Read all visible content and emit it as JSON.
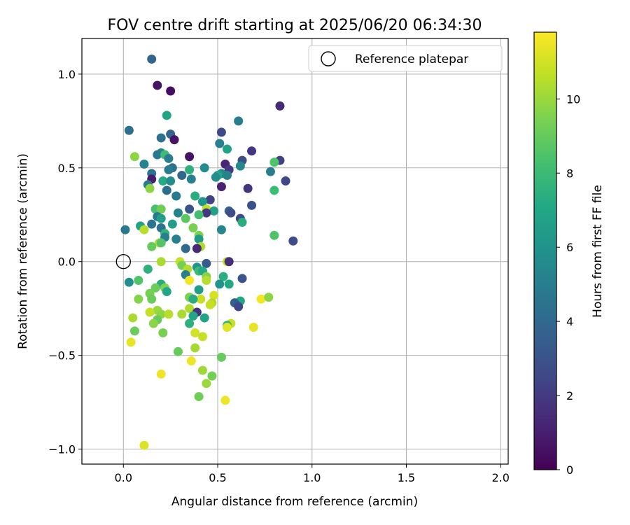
{
  "chart_data": {
    "type": "scatter",
    "title": "FOV centre drift starting at 2025/06/20 06:34:30",
    "xlabel": "Angular distance from reference (arcmin)",
    "ylabel": "Rotation from reference (arcmin)",
    "xlim": [
      -0.22,
      2.04
    ],
    "ylim": [
      -1.08,
      1.19
    ],
    "x_ticks": [
      0.0,
      0.5,
      1.0,
      1.5,
      2.0
    ],
    "x_tick_labels": [
      "0.0",
      "0.5",
      "1.0",
      "1.5",
      "2.0"
    ],
    "y_ticks": [
      -1.0,
      -0.5,
      0.0,
      0.5,
      1.0
    ],
    "y_tick_labels": [
      "−1.0",
      "−0.5",
      "0.0",
      "0.5",
      "1.0"
    ],
    "grid": true,
    "legend": {
      "placement": "top-right",
      "entries": [
        "Reference platepar"
      ]
    },
    "reference_point": {
      "x": 0.0,
      "y": 0.0,
      "label": "Reference platepar"
    },
    "colorbar": {
      "label": "Hours from first FF file",
      "colormap": "viridis",
      "range": [
        0,
        11.8
      ],
      "ticks": [
        0,
        2,
        4,
        6,
        8,
        10
      ],
      "tick_labels": [
        "0",
        "2",
        "4",
        "6",
        "8",
        "10"
      ]
    },
    "points": [
      {
        "x": 0.15,
        "y": 1.08,
        "h": 3.8
      },
      {
        "x": 0.18,
        "y": 0.94,
        "h": 0.6
      },
      {
        "x": 0.25,
        "y": 0.91,
        "h": 0.4
      },
      {
        "x": 0.83,
        "y": 0.83,
        "h": 1.4
      },
      {
        "x": 0.23,
        "y": 0.78,
        "h": 6.8
      },
      {
        "x": 0.61,
        "y": 0.75,
        "h": 5.0
      },
      {
        "x": 0.03,
        "y": 0.7,
        "h": 4.3
      },
      {
        "x": 0.52,
        "y": 0.69,
        "h": 2.6
      },
      {
        "x": 0.25,
        "y": 0.68,
        "h": 3.8
      },
      {
        "x": 0.2,
        "y": 0.66,
        "h": 4.4
      },
      {
        "x": 0.27,
        "y": 0.65,
        "h": 0.6
      },
      {
        "x": 0.51,
        "y": 0.63,
        "h": 5.1
      },
      {
        "x": 0.55,
        "y": 0.6,
        "h": 6.8
      },
      {
        "x": 0.68,
        "y": 0.59,
        "h": 1.8
      },
      {
        "x": 0.2,
        "y": 0.58,
        "h": 5.4
      },
      {
        "x": 0.18,
        "y": 0.57,
        "h": 4.8
      },
      {
        "x": 0.22,
        "y": 0.57,
        "h": 8.1
      },
      {
        "x": 0.06,
        "y": 0.56,
        "h": 9.8
      },
      {
        "x": 0.35,
        "y": 0.56,
        "h": 0.6
      },
      {
        "x": 0.24,
        "y": 0.55,
        "h": 5.0
      },
      {
        "x": 0.83,
        "y": 0.54,
        "h": 2.3
      },
      {
        "x": 0.63,
        "y": 0.54,
        "h": 2.8
      },
      {
        "x": 0.8,
        "y": 0.53,
        "h": 8.5
      },
      {
        "x": 0.11,
        "y": 0.52,
        "h": 5.3
      },
      {
        "x": 0.54,
        "y": 0.52,
        "h": 1.2
      },
      {
        "x": 0.62,
        "y": 0.51,
        "h": 5.5
      },
      {
        "x": 0.26,
        "y": 0.5,
        "h": 4.3
      },
      {
        "x": 0.43,
        "y": 0.5,
        "h": 5.7
      },
      {
        "x": 0.24,
        "y": 0.49,
        "h": 4.9
      },
      {
        "x": 0.35,
        "y": 0.49,
        "h": 7.5
      },
      {
        "x": 0.56,
        "y": 0.49,
        "h": 2.0
      },
      {
        "x": 0.78,
        "y": 0.48,
        "h": 5.0
      },
      {
        "x": 0.15,
        "y": 0.47,
        "h": 4.5
      },
      {
        "x": 0.52,
        "y": 0.47,
        "h": 5.5
      },
      {
        "x": 0.5,
        "y": 0.46,
        "h": 7.0
      },
      {
        "x": 0.31,
        "y": 0.46,
        "h": 4.0
      },
      {
        "x": 0.55,
        "y": 0.46,
        "h": 5.2
      },
      {
        "x": 0.49,
        "y": 0.45,
        "h": 5.8
      },
      {
        "x": 0.15,
        "y": 0.44,
        "h": 0.9
      },
      {
        "x": 0.36,
        "y": 0.44,
        "h": 5.1
      },
      {
        "x": 0.21,
        "y": 0.43,
        "h": 7.2
      },
      {
        "x": 0.25,
        "y": 0.43,
        "h": 5.7
      },
      {
        "x": 0.86,
        "y": 0.43,
        "h": 2.5
      },
      {
        "x": 0.13,
        "y": 0.41,
        "h": 4.8
      },
      {
        "x": 0.52,
        "y": 0.4,
        "h": 1.1
      },
      {
        "x": 0.66,
        "y": 0.39,
        "h": 1.8
      },
      {
        "x": 0.14,
        "y": 0.39,
        "h": 9.8
      },
      {
        "x": 0.8,
        "y": 0.38,
        "h": 8.0
      },
      {
        "x": 0.23,
        "y": 0.38,
        "h": 4.2
      },
      {
        "x": 0.28,
        "y": 0.35,
        "h": 4.8
      },
      {
        "x": 0.38,
        "y": 0.35,
        "h": 7.3
      },
      {
        "x": 0.46,
        "y": 0.33,
        "h": 2.3
      },
      {
        "x": 0.42,
        "y": 0.32,
        "h": 6.2
      },
      {
        "x": 0.68,
        "y": 0.3,
        "h": 2.9
      },
      {
        "x": 0.17,
        "y": 0.28,
        "h": 8.3
      },
      {
        "x": 0.2,
        "y": 0.28,
        "h": 9.2
      },
      {
        "x": 0.35,
        "y": 0.28,
        "h": 3.0
      },
      {
        "x": 0.44,
        "y": 0.28,
        "h": 10.6
      },
      {
        "x": 0.48,
        "y": 0.27,
        "h": 6.7
      },
      {
        "x": 0.56,
        "y": 0.27,
        "h": 3.8
      },
      {
        "x": 0.29,
        "y": 0.26,
        "h": 5.2
      },
      {
        "x": 0.44,
        "y": 0.26,
        "h": 1.9
      },
      {
        "x": 0.4,
        "y": 0.25,
        "h": 8.2
      },
      {
        "x": 0.57,
        "y": 0.26,
        "h": 2.8
      },
      {
        "x": 0.18,
        "y": 0.24,
        "h": 4.8
      },
      {
        "x": 0.2,
        "y": 0.23,
        "h": 6.5
      },
      {
        "x": 0.33,
        "y": 0.23,
        "h": 8.8
      },
      {
        "x": 0.62,
        "y": 0.23,
        "h": 2.6
      },
      {
        "x": 0.63,
        "y": 0.21,
        "h": 7.4
      },
      {
        "x": 0.15,
        "y": 0.2,
        "h": 4.6
      },
      {
        "x": 0.26,
        "y": 0.2,
        "h": 6.5
      },
      {
        "x": 0.09,
        "y": 0.19,
        "h": 6.8
      },
      {
        "x": 0.2,
        "y": 0.18,
        "h": 4.5
      },
      {
        "x": 0.37,
        "y": 0.18,
        "h": 9.4
      },
      {
        "x": 0.01,
        "y": 0.17,
        "h": 4.7
      },
      {
        "x": 0.11,
        "y": 0.17,
        "h": 10.5
      },
      {
        "x": 0.52,
        "y": 0.17,
        "h": 5.4
      },
      {
        "x": 0.22,
        "y": 0.15,
        "h": 7.6
      },
      {
        "x": 0.4,
        "y": 0.14,
        "h": 9.5
      },
      {
        "x": 0.8,
        "y": 0.14,
        "h": 8.5
      },
      {
        "x": 0.22,
        "y": 0.13,
        "h": 5.0
      },
      {
        "x": 0.4,
        "y": 0.12,
        "h": 6.3
      },
      {
        "x": 0.28,
        "y": 0.12,
        "h": 5.1
      },
      {
        "x": 0.9,
        "y": 0.11,
        "h": 2.7
      },
      {
        "x": 0.19,
        "y": 0.1,
        "h": 10.4
      },
      {
        "x": 0.2,
        "y": 0.1,
        "h": 8.6
      },
      {
        "x": 0.15,
        "y": 0.08,
        "h": 9.0
      },
      {
        "x": 0.41,
        "y": 0.08,
        "h": 10.3
      },
      {
        "x": 0.39,
        "y": 0.07,
        "h": 1.3
      },
      {
        "x": 0.33,
        "y": 0.07,
        "h": 4.1
      },
      {
        "x": 0.2,
        "y": 0.0,
        "h": 10.3
      },
      {
        "x": 0.3,
        "y": 0.0,
        "h": 10.8
      },
      {
        "x": 0.55,
        "y": 0.0,
        "h": 10.7
      },
      {
        "x": 0.56,
        "y": 0.0,
        "h": 1.5
      },
      {
        "x": 0.44,
        "y": -0.01,
        "h": 3.3
      },
      {
        "x": 0.31,
        "y": -0.02,
        "h": 9.3
      },
      {
        "x": 0.39,
        "y": -0.03,
        "h": 6.0
      },
      {
        "x": 0.13,
        "y": -0.04,
        "h": 7.5
      },
      {
        "x": 0.34,
        "y": -0.04,
        "h": 10.4
      },
      {
        "x": 0.4,
        "y": -0.05,
        "h": 8.0
      },
      {
        "x": 0.42,
        "y": -0.05,
        "h": 7.2
      },
      {
        "x": 0.33,
        "y": -0.07,
        "h": 5.1
      },
      {
        "x": 0.53,
        "y": -0.08,
        "h": 7.4
      },
      {
        "x": 0.44,
        "y": -0.08,
        "h": 9.6
      },
      {
        "x": 0.63,
        "y": -0.09,
        "h": 3.1
      },
      {
        "x": 0.35,
        "y": -0.1,
        "h": 11.6
      },
      {
        "x": 0.08,
        "y": -0.1,
        "h": 8.5
      },
      {
        "x": 0.03,
        "y": -0.11,
        "h": 5.8
      },
      {
        "x": 0.44,
        "y": -0.1,
        "h": 10.5
      },
      {
        "x": 0.2,
        "y": -0.12,
        "h": 7.3
      },
      {
        "x": 0.51,
        "y": -0.12,
        "h": 6.0
      },
      {
        "x": 0.56,
        "y": -0.12,
        "h": 7.1
      },
      {
        "x": 0.22,
        "y": -0.14,
        "h": 9.5
      },
      {
        "x": 0.17,
        "y": -0.14,
        "h": 9.1
      },
      {
        "x": 0.4,
        "y": -0.15,
        "h": 6.5
      },
      {
        "x": 0.23,
        "y": -0.16,
        "h": 7.0
      },
      {
        "x": 0.14,
        "y": -0.17,
        "h": 9.4
      },
      {
        "x": 0.48,
        "y": -0.18,
        "h": 11.1
      },
      {
        "x": 0.35,
        "y": -0.19,
        "h": 9.4
      },
      {
        "x": 0.15,
        "y": -0.2,
        "h": 9.1
      },
      {
        "x": 0.41,
        "y": -0.2,
        "h": 10.8
      },
      {
        "x": 0.37,
        "y": -0.2,
        "h": 7.3
      },
      {
        "x": 0.08,
        "y": -0.2,
        "h": 9.6
      },
      {
        "x": 0.73,
        "y": -0.2,
        "h": 11.6
      },
      {
        "x": 0.77,
        "y": -0.19,
        "h": 9.8
      },
      {
        "x": 0.62,
        "y": -0.21,
        "h": 7.1
      },
      {
        "x": 0.47,
        "y": -0.22,
        "h": 10.4
      },
      {
        "x": 0.59,
        "y": -0.22,
        "h": 3.6
      },
      {
        "x": 0.46,
        "y": -0.23,
        "h": 10.8
      },
      {
        "x": 0.61,
        "y": -0.24,
        "h": 2.5
      },
      {
        "x": 0.35,
        "y": -0.25,
        "h": 10.4
      },
      {
        "x": 0.18,
        "y": -0.26,
        "h": 10.0
      },
      {
        "x": 0.14,
        "y": -0.27,
        "h": 10.7
      },
      {
        "x": 0.39,
        "y": -0.27,
        "h": 1.7
      },
      {
        "x": 0.2,
        "y": -0.28,
        "h": 9.8
      },
      {
        "x": 0.24,
        "y": -0.28,
        "h": 10.5
      },
      {
        "x": 0.31,
        "y": -0.28,
        "h": 10.3
      },
      {
        "x": 0.37,
        "y": -0.29,
        "h": 7.0
      },
      {
        "x": 0.05,
        "y": -0.3,
        "h": 10.3
      },
      {
        "x": 0.43,
        "y": -0.3,
        "h": 6.8
      },
      {
        "x": 0.18,
        "y": -0.31,
        "h": 9.0
      },
      {
        "x": 0.57,
        "y": -0.33,
        "h": 10.8
      },
      {
        "x": 0.16,
        "y": -0.33,
        "h": 9.7
      },
      {
        "x": 0.35,
        "y": -0.33,
        "h": 7.5
      },
      {
        "x": 0.55,
        "y": -0.34,
        "h": 7.6
      },
      {
        "x": 0.55,
        "y": -0.35,
        "h": 11.3
      },
      {
        "x": 0.69,
        "y": -0.35,
        "h": 11.4
      },
      {
        "x": 0.06,
        "y": -0.37,
        "h": 9.1
      },
      {
        "x": 0.21,
        "y": -0.38,
        "h": 9.4
      },
      {
        "x": 0.38,
        "y": -0.38,
        "h": 11.0
      },
      {
        "x": 0.42,
        "y": -0.4,
        "h": 10.8
      },
      {
        "x": 0.04,
        "y": -0.43,
        "h": 11.4
      },
      {
        "x": 0.38,
        "y": -0.46,
        "h": 10.2
      },
      {
        "x": 0.29,
        "y": -0.48,
        "h": 9.0
      },
      {
        "x": 0.52,
        "y": -0.51,
        "h": 9.0
      },
      {
        "x": 0.36,
        "y": -0.53,
        "h": 11.5
      },
      {
        "x": 0.42,
        "y": -0.58,
        "h": 10.1
      },
      {
        "x": 0.2,
        "y": -0.6,
        "h": 11.5
      },
      {
        "x": 0.47,
        "y": -0.61,
        "h": 9.3
      },
      {
        "x": 0.44,
        "y": -0.65,
        "h": 10.0
      },
      {
        "x": 0.4,
        "y": -0.72,
        "h": 9.2
      },
      {
        "x": 0.54,
        "y": -0.74,
        "h": 11.5
      },
      {
        "x": 0.11,
        "y": -0.98,
        "h": 11.2
      }
    ]
  }
}
